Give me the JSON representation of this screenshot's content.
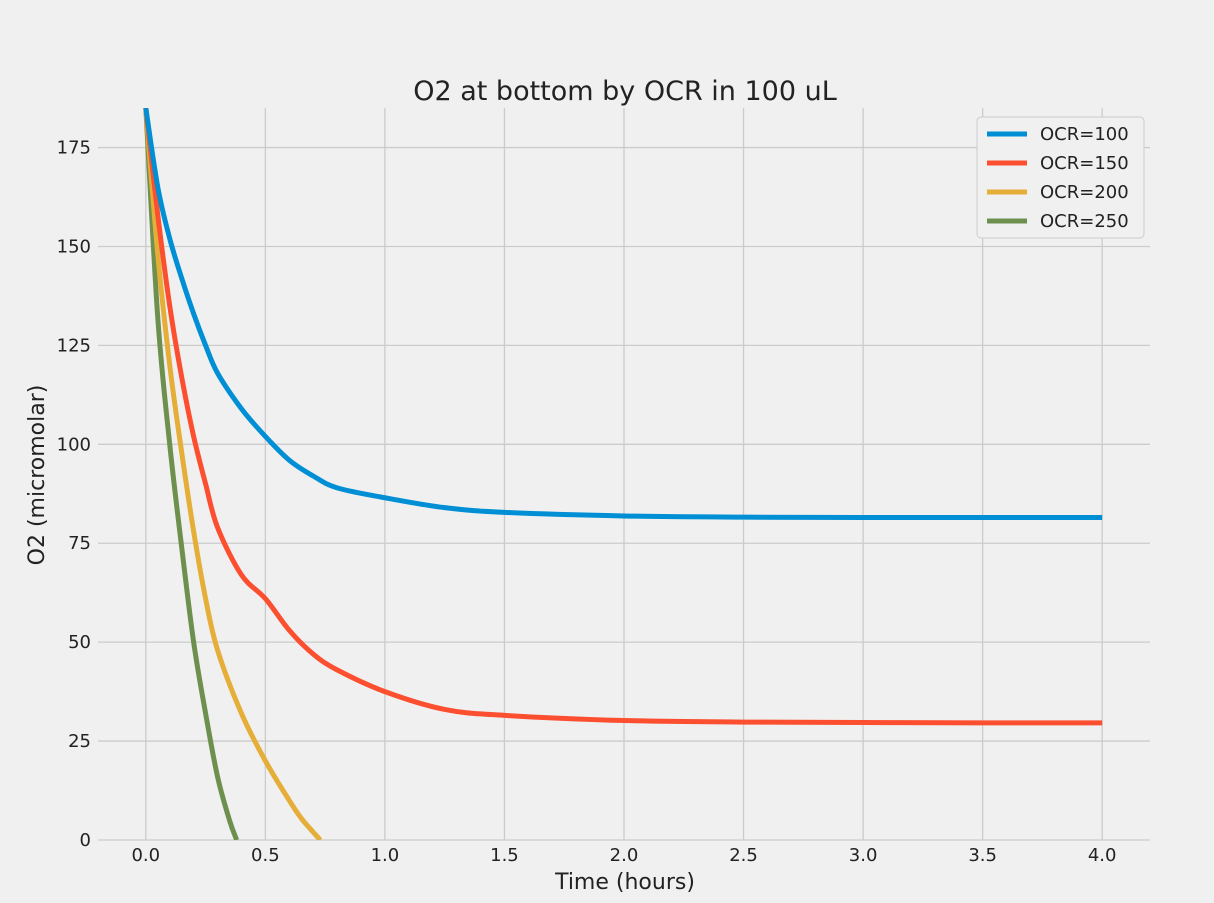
{
  "chart_data": {
    "type": "line",
    "title": "O2 at bottom by OCR in 100 uL",
    "xlabel": "Time (hours)",
    "ylabel": "O2 (micromolar)",
    "xlim": [
      -0.2,
      4.2
    ],
    "ylim": [
      0,
      185
    ],
    "xticks": [
      0.0,
      0.5,
      1.0,
      1.5,
      2.0,
      2.5,
      3.0,
      3.5,
      4.0
    ],
    "xtick_labels": [
      "0.0",
      "0.5",
      "1.0",
      "1.5",
      "2.0",
      "2.5",
      "3.0",
      "3.5",
      "4.0"
    ],
    "yticks": [
      0,
      25,
      50,
      75,
      100,
      125,
      150,
      175
    ],
    "ytick_labels": [
      "0",
      "25",
      "50",
      "75",
      "100",
      "125",
      "150",
      "175"
    ],
    "grid": true,
    "legend_position": "top-right",
    "series": [
      {
        "name": "OCR=100",
        "color": "#008fd5",
        "x": [
          0,
          0.05,
          0.1,
          0.15,
          0.2,
          0.25,
          0.3,
          0.4,
          0.5,
          0.6,
          0.7,
          0.8,
          1.0,
          1.25,
          1.5,
          2.0,
          2.5,
          3.0,
          3.5,
          4.0
        ],
        "y": [
          185,
          165,
          152,
          142,
          133,
          125,
          118,
          109,
          102,
          96,
          92,
          89,
          86.5,
          84,
          82.8,
          81.9,
          81.6,
          81.5,
          81.5,
          81.5
        ]
      },
      {
        "name": "OCR=150",
        "color": "#fc4f30",
        "x": [
          0,
          0.05,
          0.1,
          0.15,
          0.2,
          0.25,
          0.3,
          0.4,
          0.5,
          0.6,
          0.7,
          0.8,
          1.0,
          1.25,
          1.5,
          2.0,
          2.5,
          3.0,
          3.5,
          4.0
        ],
        "y": [
          185,
          158,
          135,
          117,
          102,
          90,
          79,
          67,
          61,
          53,
          47,
          43,
          37.5,
          33,
          31.5,
          30.2,
          29.8,
          29.7,
          29.6,
          29.6
        ]
      },
      {
        "name": "OCR=200",
        "color": "#e5ae38",
        "x": [
          0,
          0.05,
          0.1,
          0.15,
          0.2,
          0.25,
          0.3,
          0.4,
          0.5,
          0.6,
          0.65,
          0.7,
          0.73
        ],
        "y": [
          185,
          148,
          120,
          98,
          78,
          61,
          48,
          32,
          20,
          10,
          5.5,
          2,
          0
        ]
      },
      {
        "name": "OCR=250",
        "color": "#6d904f",
        "x": [
          0,
          0.05,
          0.1,
          0.15,
          0.2,
          0.25,
          0.3,
          0.35,
          0.38
        ],
        "y": [
          185,
          132,
          100,
          74,
          50,
          32,
          16,
          5,
          0
        ]
      }
    ]
  }
}
